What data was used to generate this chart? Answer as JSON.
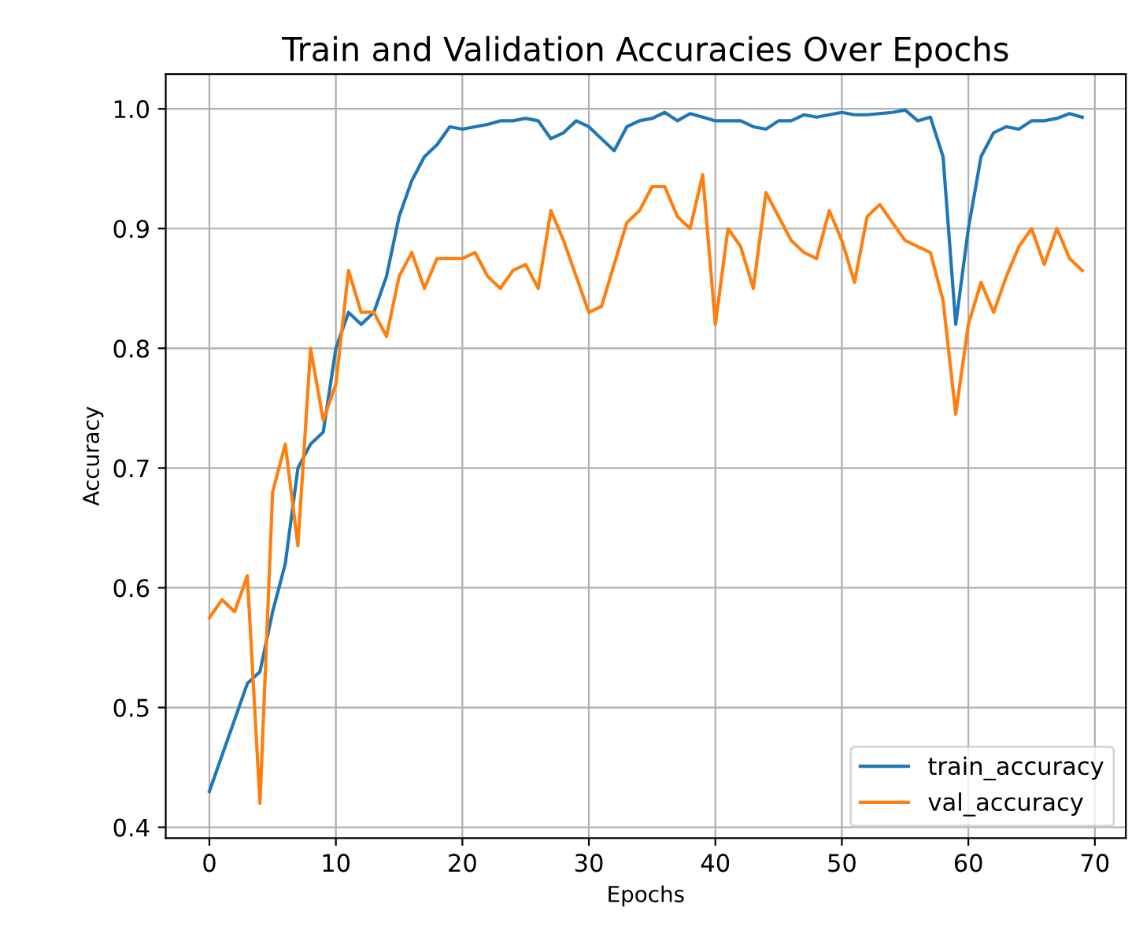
{
  "chart_data": {
    "type": "line",
    "title": "Train and Validation Accuracies Over Epochs",
    "xlabel": "Epochs",
    "ylabel": "Accuracy",
    "x": [
      0,
      1,
      2,
      3,
      4,
      5,
      6,
      7,
      8,
      9,
      10,
      11,
      12,
      13,
      14,
      15,
      16,
      17,
      18,
      19,
      20,
      21,
      22,
      23,
      24,
      25,
      26,
      27,
      28,
      29,
      30,
      31,
      32,
      33,
      34,
      35,
      36,
      37,
      38,
      39,
      40,
      41,
      42,
      43,
      44,
      45,
      46,
      47,
      48,
      49,
      50,
      51,
      52,
      53,
      54,
      55,
      56,
      57,
      58,
      59,
      60,
      61,
      62,
      63,
      64,
      65,
      66,
      67,
      68,
      69
    ],
    "series": [
      {
        "name": "train_accuracy",
        "color": "#1f77b4",
        "values": [
          0.43,
          0.46,
          0.49,
          0.52,
          0.53,
          0.58,
          0.62,
          0.7,
          0.72,
          0.73,
          0.8,
          0.83,
          0.82,
          0.83,
          0.86,
          0.91,
          0.94,
          0.96,
          0.97,
          0.985,
          0.983,
          0.985,
          0.987,
          0.99,
          0.99,
          0.992,
          0.99,
          0.975,
          0.98,
          0.99,
          0.985,
          0.975,
          0.965,
          0.985,
          0.99,
          0.992,
          0.997,
          0.99,
          0.996,
          0.993,
          0.99,
          0.99,
          0.99,
          0.985,
          0.983,
          0.99,
          0.99,
          0.995,
          0.993,
          0.995,
          0.997,
          0.995,
          0.995,
          0.996,
          0.997,
          0.999,
          0.99,
          0.993,
          0.96,
          0.82,
          0.9,
          0.96,
          0.98,
          0.985,
          0.983,
          0.99,
          0.99,
          0.992,
          0.996,
          0.993
        ]
      },
      {
        "name": "val_accuracy",
        "color": "#ff7f0e",
        "values": [
          0.575,
          0.59,
          0.58,
          0.61,
          0.42,
          0.68,
          0.72,
          0.635,
          0.8,
          0.74,
          0.77,
          0.865,
          0.83,
          0.83,
          0.81,
          0.86,
          0.88,
          0.85,
          0.875,
          0.875,
          0.875,
          0.88,
          0.86,
          0.85,
          0.865,
          0.87,
          0.85,
          0.915,
          0.89,
          0.86,
          0.83,
          0.835,
          0.87,
          0.905,
          0.915,
          0.935,
          0.935,
          0.91,
          0.9,
          0.945,
          0.82,
          0.9,
          0.885,
          0.85,
          0.93,
          0.91,
          0.89,
          0.88,
          0.875,
          0.915,
          0.89,
          0.855,
          0.91,
          0.92,
          0.905,
          0.89,
          0.885,
          0.88,
          0.84,
          0.745,
          0.82,
          0.855,
          0.83,
          0.86,
          0.885,
          0.9,
          0.87,
          0.9,
          0.875,
          0.865
        ]
      }
    ],
    "xlim": [
      -3.45,
      72.45
    ],
    "ylim": [
      0.391,
      1.029
    ],
    "xticks": [
      0,
      10,
      20,
      30,
      40,
      50,
      60,
      70
    ],
    "yticks": [
      {
        "value": 0.4,
        "label": "0.4"
      },
      {
        "value": 0.5,
        "label": "0.5"
      },
      {
        "value": 0.6,
        "label": "0.6"
      },
      {
        "value": 0.7,
        "label": "0.7"
      },
      {
        "value": 0.8,
        "label": "0.8"
      },
      {
        "value": 0.9,
        "label": "0.9"
      },
      {
        "value": 1.0,
        "label": "1.0"
      }
    ],
    "grid": true,
    "legend": "lower right",
    "marker": "none",
    "line_style": "solid"
  }
}
